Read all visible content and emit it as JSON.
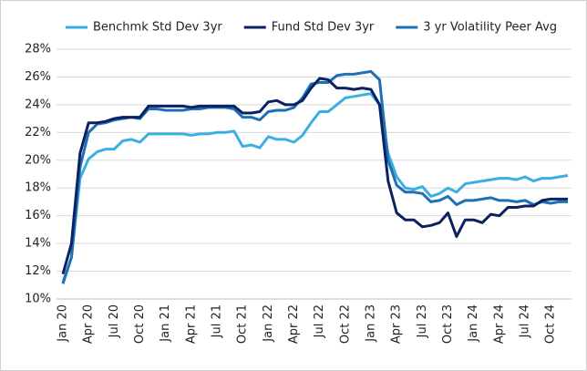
{
  "chart_data": {
    "type": "line",
    "categories": [
      "Jan 20",
      null,
      null,
      "Apr 20",
      null,
      null,
      "Jul 20",
      null,
      null,
      "Oct 20",
      null,
      null,
      "Jan 21",
      null,
      null,
      "Apr 21",
      null,
      null,
      "Jul 21",
      null,
      null,
      "Oct 21",
      null,
      null,
      "Jan 22",
      null,
      null,
      "Apr 22",
      null,
      null,
      "Jul 22",
      null,
      null,
      "Oct 22",
      null,
      null,
      "Jan 23",
      null,
      null,
      "Apr 23",
      null,
      null,
      "Jul 23",
      null,
      null,
      "Oct 23",
      null,
      null,
      "Jan 24",
      null,
      null,
      "Apr 24",
      null,
      null,
      "Jul 24",
      null,
      null,
      "Oct 24",
      null,
      null
    ],
    "series": [
      {
        "name": "Benchmk Std Dev 3yr",
        "color": "#3ab0e2",
        "values": [
          11.2,
          13,
          18.7,
          20.1,
          20.6,
          20.8,
          20.8,
          21.4,
          21.5,
          21.3,
          21.9,
          21.9,
          21.9,
          21.9,
          21.9,
          21.8,
          21.9,
          21.9,
          22,
          22,
          22.1,
          21,
          21.1,
          20.9,
          21.7,
          21.5,
          21.5,
          21.3,
          21.8,
          22.7,
          23.5,
          23.5,
          24,
          24.5,
          24.6,
          24.7,
          24.8,
          24,
          20.5,
          18.8,
          18,
          17.9,
          18.1,
          17.4,
          17.6,
          18,
          17.7,
          18.3,
          18.4,
          18.5,
          18.6,
          18.7,
          18.7,
          18.6,
          18.8,
          18.5,
          18.7,
          18.7,
          18.8,
          18.9
        ]
      },
      {
        "name": "Fund Std Dev 3yr",
        "color": "#0b2160",
        "values": [
          11.8,
          14,
          20.5,
          22.7,
          22.7,
          22.8,
          23,
          23.1,
          23.1,
          23.1,
          23.9,
          23.9,
          23.9,
          23.9,
          23.9,
          23.8,
          23.9,
          23.9,
          23.9,
          23.9,
          23.9,
          23.4,
          23.4,
          23.5,
          24.2,
          24.3,
          24,
          24,
          24.3,
          25.2,
          25.9,
          25.8,
          25.2,
          25.2,
          25.1,
          25.2,
          25.1,
          24,
          18.5,
          16.2,
          15.7,
          15.7,
          15.2,
          15.3,
          15.5,
          16.2,
          14.5,
          15.7,
          15.7,
          15.5,
          16.1,
          16,
          16.6,
          16.6,
          16.7,
          16.7,
          17.1,
          17.2,
          17.2,
          17.2
        ]
      },
      {
        "name": "3 yr Volatility Peer Avg",
        "color": "#1f6fb5",
        "values": [
          11.1,
          13,
          19.5,
          22,
          22.6,
          22.7,
          22.9,
          23,
          23.1,
          23,
          23.7,
          23.7,
          23.6,
          23.6,
          23.6,
          23.7,
          23.7,
          23.8,
          23.8,
          23.8,
          23.7,
          23.1,
          23.1,
          22.9,
          23.5,
          23.6,
          23.6,
          23.8,
          24.5,
          25.5,
          25.6,
          25.6,
          26.1,
          26.2,
          26.2,
          26.3,
          26.4,
          25.8,
          20,
          18.2,
          17.7,
          17.7,
          17.6,
          17,
          17.1,
          17.4,
          16.8,
          17.1,
          17.1,
          17.2,
          17.3,
          17.1,
          17.1,
          17,
          17.1,
          16.8,
          17,
          16.9,
          17,
          17
        ]
      }
    ],
    "ylim": [
      10,
      28
    ],
    "yticks": [
      {
        "value": 10,
        "label": "10%"
      },
      {
        "value": 12,
        "label": "12%"
      },
      {
        "value": 14,
        "label": "14%"
      },
      {
        "value": 16,
        "label": "16%"
      },
      {
        "value": 18,
        "label": "18%"
      },
      {
        "value": 20,
        "label": "20%"
      },
      {
        "value": 22,
        "label": "22%"
      },
      {
        "value": 24,
        "label": "24%"
      },
      {
        "value": 26,
        "label": "26%"
      },
      {
        "value": 28,
        "label": "28%"
      }
    ],
    "grid": true,
    "legend": "top"
  }
}
